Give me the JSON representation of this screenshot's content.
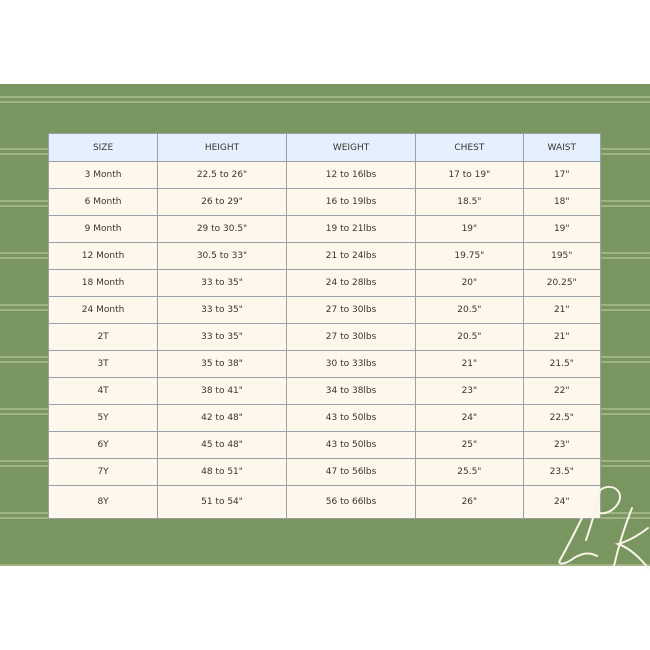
{
  "table": {
    "headers": [
      "SIZE",
      "HEIGHT",
      "WEIGHT",
      "CHEST",
      "WAIST"
    ],
    "rows": [
      [
        "3 Month",
        "22.5 to 26\"",
        "12 to 16lbs",
        "17 to 19\"",
        "17\""
      ],
      [
        "6 Month",
        "26 to 29\"",
        "16 to 19lbs",
        "18.5\"",
        "18\""
      ],
      [
        "9 Month",
        "29 to 30.5\"",
        "19 to 21lbs",
        "19\"",
        "19\""
      ],
      [
        "12 Month",
        "30.5 to 33\"",
        "21 to 24lbs",
        "19.75\"",
        "195\""
      ],
      [
        "18 Month",
        "33 to 35\"",
        "24 to 28lbs",
        "20\"",
        "20.25\""
      ],
      [
        "24 Month",
        "33 to 35\"",
        "27 to 30lbs",
        "20.5\"",
        "21\""
      ],
      [
        "2T",
        "33 to 35\"",
        "27 to 30lbs",
        "20.5\"",
        "21\""
      ],
      [
        "3T",
        "35 to 38\"",
        "30 to 33lbs",
        "21\"",
        "21.5\""
      ],
      [
        "4T",
        "38 to 41\"",
        "34 to 38lbs",
        "23\"",
        "22\""
      ],
      [
        "5Y",
        "42 to 48\"",
        "43 to 50lbs",
        "24\"",
        "22.5\""
      ],
      [
        "6Y",
        "45 to 48\"",
        "43 to 50lbs",
        "25\"",
        "23\""
      ],
      [
        "7Y",
        "48 to 51\"",
        "47 to 56lbs",
        "25.5\"",
        "23.5\""
      ],
      [
        "8Y",
        "51 to 54\"",
        "56 to 66lbs",
        "26\"",
        "24\""
      ]
    ]
  },
  "logo": {
    "text": "LPK"
  },
  "colors": {
    "background": "#7a9660",
    "header": "#e4f0fd",
    "cell": "#fdf7ec"
  }
}
